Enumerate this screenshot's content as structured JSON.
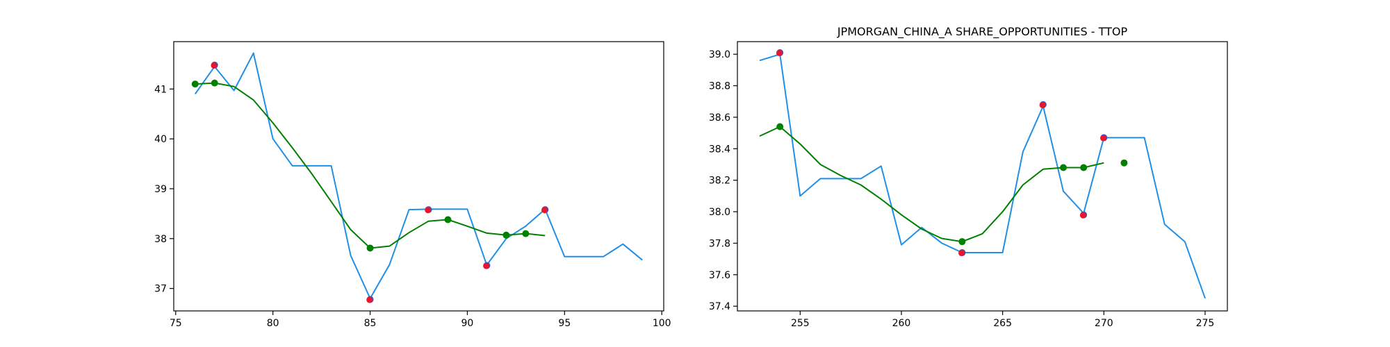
{
  "chart_data": [
    {
      "type": "line",
      "title": "",
      "xlabel": "",
      "ylabel": "",
      "xlim": [
        74.9,
        100.1
      ],
      "ylim": [
        36.55,
        41.95
      ],
      "x_ticks": [
        75,
        80,
        85,
        90,
        95,
        100
      ],
      "y_ticks": [
        37,
        38,
        39,
        40,
        41
      ],
      "grid": false,
      "legend": "none",
      "colors": {
        "price": "#1f8fe8",
        "smooth": "#008000",
        "extrema": "#e8162a",
        "smooth_points": "#008000"
      },
      "series": [
        {
          "kind": "line",
          "color_key": "price",
          "x": [
            76,
            77,
            78,
            79,
            80,
            81,
            82,
            83,
            84,
            85,
            86,
            87,
            88,
            89,
            90,
            91,
            92,
            93,
            94,
            95,
            96,
            97,
            98,
            99
          ],
          "y": [
            40.9,
            41.45,
            40.97,
            41.72,
            40.0,
            39.46,
            39.46,
            39.46,
            37.66,
            36.8,
            37.48,
            38.58,
            38.59,
            38.59,
            38.59,
            37.47,
            38.0,
            38.25,
            38.59,
            37.64,
            37.64,
            37.64,
            37.89,
            37.57
          ]
        },
        {
          "kind": "line",
          "color_key": "smooth",
          "x": [
            76,
            77,
            78,
            79,
            80,
            81,
            82,
            83,
            84,
            85,
            86,
            87,
            88,
            89,
            90,
            91,
            92,
            93,
            94
          ],
          "y": [
            41.1,
            41.12,
            41.05,
            40.78,
            40.32,
            39.82,
            39.3,
            38.74,
            38.18,
            37.81,
            37.85,
            38.12,
            38.35,
            38.38,
            38.25,
            38.11,
            38.07,
            38.1,
            38.06
          ]
        },
        {
          "kind": "scatter",
          "color_key": "extrema",
          "x": [
            77,
            85,
            88,
            91,
            94
          ],
          "y": [
            41.48,
            36.78,
            38.58,
            37.46,
            38.58
          ]
        },
        {
          "kind": "scatter",
          "color_key": "smooth_points",
          "x": [
            76,
            77,
            85,
            89,
            92,
            93
          ],
          "y": [
            41.1,
            41.12,
            37.81,
            38.38,
            38.07,
            38.1
          ]
        }
      ]
    },
    {
      "type": "line",
      "title": "JPMORGAN_CHINA_A SHARE_OPPORTUNITIES - TTOP",
      "xlabel": "",
      "ylabel": "",
      "xlim": [
        251.9,
        276.1
      ],
      "ylim": [
        37.37,
        39.08
      ],
      "x_ticks": [
        255,
        260,
        265,
        270,
        275
      ],
      "y_ticks": [
        37.4,
        37.6,
        37.8,
        38.0,
        38.2,
        38.4,
        38.6,
        38.8,
        39.0
      ],
      "grid": false,
      "legend": "none",
      "colors": {
        "price": "#1f8fe8",
        "smooth": "#008000",
        "extrema": "#e8162a",
        "smooth_points": "#008000"
      },
      "series": [
        {
          "kind": "line",
          "color_key": "price",
          "x": [
            253,
            254,
            255,
            256,
            257,
            258,
            259,
            260,
            261,
            262,
            263,
            264,
            265,
            266,
            267,
            268,
            269,
            270,
            271,
            272,
            273,
            274,
            275
          ],
          "y": [
            38.96,
            39.0,
            38.1,
            38.21,
            38.21,
            38.21,
            38.29,
            37.79,
            37.9,
            37.8,
            37.74,
            37.74,
            37.74,
            38.38,
            38.67,
            38.13,
            37.99,
            38.47,
            38.47,
            38.47,
            37.92,
            37.81,
            37.45
          ]
        },
        {
          "kind": "line",
          "color_key": "smooth",
          "x": [
            253,
            254,
            255,
            256,
            257,
            258,
            259,
            260,
            261,
            262,
            263,
            264,
            265,
            266,
            267,
            268,
            269,
            270
          ],
          "y": [
            38.48,
            38.54,
            38.43,
            38.3,
            38.23,
            38.17,
            38.08,
            37.98,
            37.89,
            37.83,
            37.81,
            37.86,
            38.0,
            38.17,
            38.27,
            38.28,
            38.28,
            38.31
          ]
        },
        {
          "kind": "scatter",
          "color_key": "extrema",
          "x": [
            254,
            263,
            267,
            269,
            270
          ],
          "y": [
            39.01,
            37.74,
            38.68,
            37.98,
            38.47
          ]
        },
        {
          "kind": "scatter",
          "color_key": "smooth_points",
          "x": [
            254,
            263,
            268,
            269,
            271
          ],
          "y": [
            38.54,
            37.81,
            38.28,
            38.28,
            38.31
          ]
        }
      ]
    }
  ]
}
